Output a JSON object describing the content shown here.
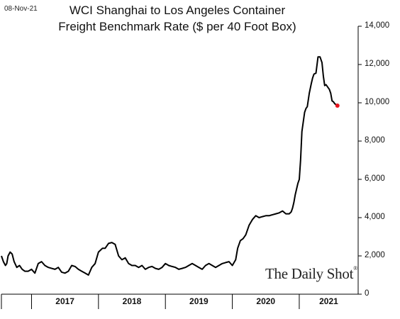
{
  "date_stamp": "08-Nov-21",
  "watermark": {
    "text": "The Daily Shot",
    "mark": "®"
  },
  "colors": {
    "line": "#000000",
    "last_point": "#e8141e",
    "axis": "#000000"
  },
  "chart_data": {
    "type": "line",
    "title_line1": "WCI Shanghai to Los Angeles Container",
    "title_line2": "Freight Benchmark Rate ($ per 40 Foot Box)",
    "title": "WCI Shanghai to Los Angeles Container Freight Benchmark Rate ($ per 40 Foot Box)",
    "xlabel": "",
    "ylabel": "",
    "ylim": [
      0,
      14000
    ],
    "xlim": [
      2016.55,
      2021.88
    ],
    "y_axis_position": "right",
    "y_ticks": [
      "0",
      "2,000",
      "4,000",
      "6,000",
      "8,000",
      "10,000",
      "12,000",
      "14,000"
    ],
    "x_ticks": [
      "2017",
      "2018",
      "2019",
      "2020",
      "2021"
    ],
    "grid": false,
    "series": [
      {
        "x": [
          2016.55,
          2016.58,
          2016.61,
          2016.63,
          2016.65,
          2016.68,
          2016.71,
          2016.74,
          2016.78,
          2016.82,
          2016.86,
          2016.9,
          2016.95,
          2017.0,
          2017.05,
          2017.1,
          2017.15,
          2017.2,
          2017.25,
          2017.3,
          2017.35,
          2017.4,
          2017.45,
          2017.5,
          2017.55,
          2017.6,
          2017.65,
          2017.7,
          2017.75,
          2017.8,
          2017.85,
          2017.9,
          2017.95,
          2018.0,
          2018.03,
          2018.06,
          2018.1,
          2018.15,
          2018.2,
          2018.25,
          2018.3,
          2018.35,
          2018.4,
          2018.45,
          2018.5,
          2018.55,
          2018.6,
          2018.65,
          2018.7,
          2018.75,
          2018.8,
          2018.85,
          2018.9,
          2018.95,
          2019.0,
          2019.05,
          2019.1,
          2019.15,
          2019.2,
          2019.25,
          2019.3,
          2019.35,
          2019.4,
          2019.45,
          2019.5,
          2019.55,
          2019.6,
          2019.65,
          2019.7,
          2019.75,
          2019.8,
          2019.85,
          2019.9,
          2019.95,
          2020.0,
          2020.05,
          2020.08,
          2020.12,
          2020.16,
          2020.2,
          2020.25,
          2020.3,
          2020.35,
          2020.4,
          2020.45,
          2020.5,
          2020.55,
          2020.6,
          2020.65,
          2020.7,
          2020.75,
          2020.8,
          2020.85,
          2020.88,
          2020.9,
          2020.92,
          2020.94,
          2020.96,
          2020.98,
          2021.0,
          2021.02,
          2021.04,
          2021.06,
          2021.08,
          2021.1,
          2021.12,
          2021.15,
          2021.18,
          2021.2,
          2021.22,
          2021.25,
          2021.28,
          2021.31,
          2021.34,
          2021.36,
          2021.38,
          2021.4,
          2021.43,
          2021.45,
          2021.47,
          2021.49,
          2021.51,
          2021.53,
          2021.55,
          2021.57
        ],
        "y": [
          2000,
          1700,
          1500,
          1600,
          2000,
          2200,
          2100,
          1700,
          1400,
          1500,
          1300,
          1200,
          1200,
          1300,
          1100,
          1600,
          1700,
          1500,
          1400,
          1350,
          1300,
          1400,
          1150,
          1100,
          1200,
          1500,
          1450,
          1300,
          1200,
          1100,
          1000,
          1400,
          1600,
          2200,
          2300,
          2400,
          2400,
          2650,
          2700,
          2600,
          2000,
          1800,
          1900,
          1600,
          1500,
          1500,
          1400,
          1500,
          1300,
          1400,
          1450,
          1350,
          1300,
          1400,
          1600,
          1500,
          1450,
          1400,
          1300,
          1350,
          1400,
          1500,
          1600,
          1500,
          1400,
          1300,
          1500,
          1600,
          1500,
          1400,
          1500,
          1600,
          1650,
          1700,
          1500,
          1800,
          2400,
          2800,
          2900,
          3100,
          3600,
          3900,
          4100,
          4000,
          4050,
          4100,
          4100,
          4150,
          4200,
          4250,
          4350,
          4200,
          4200,
          4300,
          4500,
          4800,
          5200,
          5500,
          5800,
          6000,
          7000,
          8500,
          9000,
          9500,
          9700,
          9800,
          10500,
          11000,
          11300,
          11500,
          11550,
          12400,
          12400,
          12100,
          11400,
          10900,
          10950,
          10800,
          10700,
          10500,
          10100,
          10050,
          9950,
          9900,
          9850
        ]
      }
    ],
    "last_point": {
      "x": 2021.57,
      "y": 9850
    }
  }
}
